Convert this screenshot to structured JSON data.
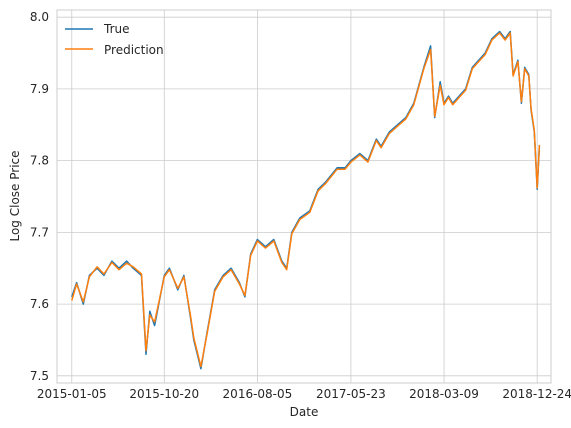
{
  "chart_data": {
    "type": "line",
    "xlabel": "Date",
    "ylabel": "Log Close Price",
    "x_ticks": [
      "2015-01-05",
      "2015-10-20",
      "2016-08-05",
      "2017-05-23",
      "2018-03-09",
      "2018-12-24"
    ],
    "y_ticks": [
      "7.5",
      "7.6",
      "7.7",
      "7.8",
      "7.9",
      "8.0"
    ],
    "xlim": [
      "2014-11-20",
      "2019-02-05"
    ],
    "ylim": [
      7.49,
      8.01
    ],
    "grid": true,
    "legend_position": "top-left",
    "x": [
      "2015-01-05",
      "2015-01-20",
      "2015-02-10",
      "2015-03-01",
      "2015-03-25",
      "2015-04-15",
      "2015-05-10",
      "2015-06-01",
      "2015-06-25",
      "2015-07-15",
      "2015-08-10",
      "2015-08-24",
      "2015-09-05",
      "2015-09-20",
      "2015-10-20",
      "2015-11-05",
      "2015-12-01",
      "2015-12-20",
      "2016-01-10",
      "2016-01-20",
      "2016-02-11",
      "2016-03-01",
      "2016-03-25",
      "2016-04-20",
      "2016-05-15",
      "2016-06-10",
      "2016-06-27",
      "2016-07-15",
      "2016-08-05",
      "2016-08-30",
      "2016-09-25",
      "2016-10-20",
      "2016-11-04",
      "2016-11-20",
      "2016-12-15",
      "2017-01-15",
      "2017-02-10",
      "2017-03-05",
      "2017-04-10",
      "2017-05-05",
      "2017-05-23",
      "2017-06-20",
      "2017-07-15",
      "2017-08-10",
      "2017-08-25",
      "2017-09-20",
      "2017-10-15",
      "2017-11-10",
      "2017-12-05",
      "2018-01-05",
      "2018-01-26",
      "2018-02-08",
      "2018-02-25",
      "2018-03-09",
      "2018-03-23",
      "2018-04-05",
      "2018-04-25",
      "2018-05-15",
      "2018-06-05",
      "2018-06-25",
      "2018-07-15",
      "2018-08-05",
      "2018-08-29",
      "2018-09-15",
      "2018-10-01",
      "2018-10-10",
      "2018-10-25",
      "2018-11-05",
      "2018-11-15",
      "2018-11-28",
      "2018-12-05",
      "2018-12-15",
      "2018-12-24",
      "2018-12-31"
    ],
    "series": [
      {
        "name": "True",
        "color": "#1f77b4",
        "values": [
          7.61,
          7.63,
          7.6,
          7.64,
          7.65,
          7.64,
          7.66,
          7.65,
          7.66,
          7.65,
          7.64,
          7.53,
          7.59,
          7.57,
          7.64,
          7.65,
          7.62,
          7.64,
          7.58,
          7.55,
          7.51,
          7.56,
          7.62,
          7.64,
          7.65,
          7.63,
          7.61,
          7.67,
          7.69,
          7.68,
          7.69,
          7.66,
          7.65,
          7.7,
          7.72,
          7.73,
          7.76,
          7.77,
          7.79,
          7.79,
          7.8,
          7.81,
          7.8,
          7.83,
          7.82,
          7.84,
          7.85,
          7.86,
          7.88,
          7.93,
          7.96,
          7.86,
          7.91,
          7.88,
          7.89,
          7.88,
          7.89,
          7.9,
          7.93,
          7.94,
          7.95,
          7.97,
          7.98,
          7.97,
          7.98,
          7.92,
          7.94,
          7.88,
          7.93,
          7.92,
          7.87,
          7.84,
          7.76,
          7.82
        ]
      },
      {
        "name": "Prediction",
        "color": "#ff7f0e",
        "values": [
          7.605,
          7.628,
          7.603,
          7.638,
          7.652,
          7.642,
          7.658,
          7.648,
          7.657,
          7.652,
          7.642,
          7.535,
          7.585,
          7.575,
          7.638,
          7.648,
          7.622,
          7.638,
          7.583,
          7.553,
          7.513,
          7.558,
          7.618,
          7.638,
          7.648,
          7.628,
          7.612,
          7.668,
          7.688,
          7.678,
          7.688,
          7.658,
          7.648,
          7.698,
          7.718,
          7.728,
          7.758,
          7.768,
          7.788,
          7.788,
          7.798,
          7.808,
          7.798,
          7.828,
          7.818,
          7.838,
          7.848,
          7.858,
          7.878,
          7.928,
          7.955,
          7.862,
          7.905,
          7.878,
          7.888,
          7.878,
          7.888,
          7.898,
          7.928,
          7.938,
          7.948,
          7.968,
          7.978,
          7.968,
          7.978,
          7.918,
          7.938,
          7.882,
          7.928,
          7.918,
          7.872,
          7.842,
          7.762,
          7.822
        ]
      }
    ]
  }
}
